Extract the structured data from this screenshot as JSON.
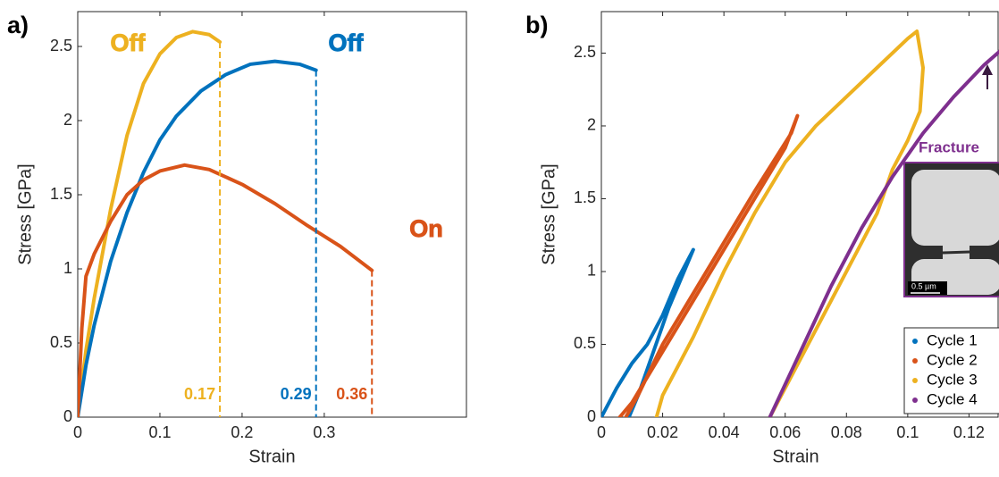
{
  "chart_data": [
    {
      "type": "line",
      "panel_label": "a)",
      "xlabel": "Strain",
      "ylabel": "Stress [GPa]",
      "xlim": [
        0,
        0.473
      ],
      "ylim": [
        0,
        2.735
      ],
      "xticks": [
        0,
        0.1,
        0.2,
        0.3
      ],
      "yticks": [
        0,
        0.5,
        1,
        1.5,
        2,
        2.5
      ],
      "series": [
        {
          "name": "Off",
          "color": "#EDB120",
          "end_label": "0.17",
          "x": [
            0,
            0.01,
            0.02,
            0.04,
            0.06,
            0.08,
            0.1,
            0.12,
            0.14,
            0.16,
            0.173
          ],
          "values": [
            0,
            0.45,
            0.8,
            1.4,
            1.9,
            2.25,
            2.45,
            2.56,
            2.6,
            2.58,
            2.53
          ]
        },
        {
          "name": "Off",
          "color": "#0072BD",
          "end_label": "0.29",
          "x": [
            0,
            0.01,
            0.02,
            0.04,
            0.06,
            0.08,
            0.1,
            0.12,
            0.15,
            0.18,
            0.21,
            0.24,
            0.27,
            0.29
          ],
          "values": [
            0,
            0.35,
            0.62,
            1.05,
            1.38,
            1.65,
            1.87,
            2.03,
            2.2,
            2.31,
            2.38,
            2.4,
            2.38,
            2.34
          ]
        },
        {
          "name": "On",
          "color": "#D95319",
          "end_label": "0.36",
          "x": [
            0,
            0.005,
            0.01,
            0.02,
            0.04,
            0.06,
            0.08,
            0.1,
            0.13,
            0.16,
            0.2,
            0.24,
            0.28,
            0.32,
            0.358
          ],
          "values": [
            0,
            0.6,
            0.95,
            1.1,
            1.32,
            1.5,
            1.6,
            1.66,
            1.7,
            1.67,
            1.57,
            1.44,
            1.29,
            1.15,
            0.99
          ]
        }
      ]
    },
    {
      "type": "line",
      "panel_label": "b)",
      "xlabel": "Strain",
      "ylabel": "Stress [GPa]",
      "xlim": [
        0,
        0.1295
      ],
      "ylim": [
        0,
        2.785
      ],
      "xticks": [
        0,
        0.02,
        0.04,
        0.06,
        0.08,
        0.1,
        0.12
      ],
      "yticks": [
        0,
        0.5,
        1,
        1.5,
        2,
        2.5
      ],
      "legend": "lower right",
      "inset_title": "Fracture",
      "scale_bar": "0.5 µm",
      "series": [
        {
          "name": "Cycle 1",
          "color": "#0072BD",
          "x": [
            0,
            0.005,
            0.01,
            0.015,
            0.02,
            0.025,
            0.03,
            0.028,
            0.022,
            0.017,
            0.012,
            0.009
          ],
          "values": [
            0,
            0.2,
            0.37,
            0.5,
            0.7,
            0.95,
            1.15,
            1.05,
            0.75,
            0.45,
            0.15,
            0
          ]
        },
        {
          "name": "Cycle 2",
          "color": "#D95319",
          "x": [
            0.006,
            0.01,
            0.02,
            0.03,
            0.04,
            0.05,
            0.06,
            0.064,
            0.062,
            0.05,
            0.04,
            0.03,
            0.02,
            0.012,
            0.008
          ],
          "values": [
            0,
            0.1,
            0.45,
            0.8,
            1.15,
            1.5,
            1.85,
            2.07,
            1.95,
            1.55,
            1.2,
            0.85,
            0.5,
            0.15,
            0
          ]
        },
        {
          "name": "Cycle 3",
          "color": "#EDB120",
          "x": [
            0.018,
            0.02,
            0.03,
            0.04,
            0.05,
            0.06,
            0.07,
            0.08,
            0.09,
            0.1,
            0.103,
            0.105,
            0.104,
            0.1,
            0.095,
            0.09,
            0.08,
            0.07,
            0.06,
            0.055
          ],
          "values": [
            0,
            0.15,
            0.55,
            1.0,
            1.4,
            1.75,
            2.0,
            2.2,
            2.4,
            2.6,
            2.65,
            2.4,
            2.1,
            1.9,
            1.7,
            1.4,
            1.0,
            0.6,
            0.2,
            0
          ]
        },
        {
          "name": "Cycle 4",
          "color": "#7E2F8E",
          "x": [
            0.055,
            0.065,
            0.075,
            0.085,
            0.095,
            0.105,
            0.115,
            0.125,
            0.131
          ],
          "values": [
            0,
            0.45,
            0.9,
            1.3,
            1.65,
            1.95,
            2.2,
            2.42,
            2.53
          ]
        }
      ]
    }
  ]
}
